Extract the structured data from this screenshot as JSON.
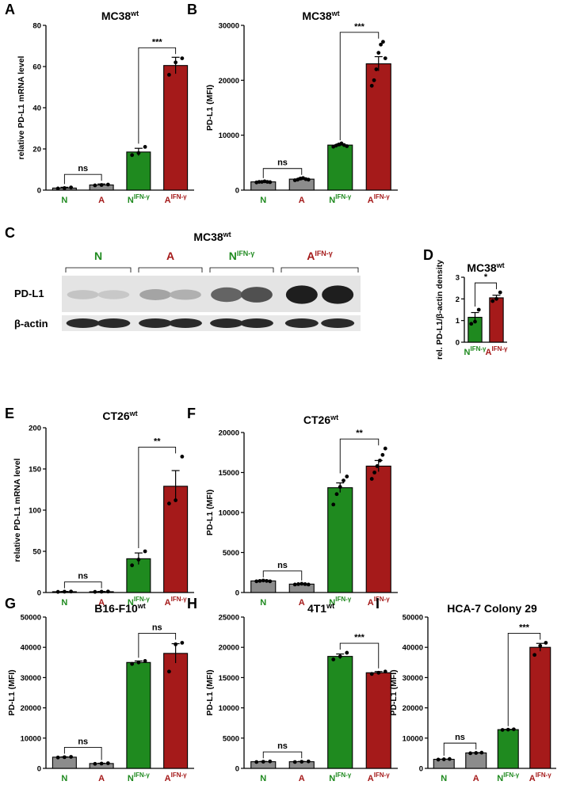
{
  "colors": {
    "N": "#8c8c8c",
    "A": "#8c8c8c",
    "N_ifn": "#1f8a1f",
    "A_ifn": "#a51a1a",
    "green_text": "#1f8a1f",
    "red_text": "#a51a1a"
  },
  "chart_data": [
    {
      "panel": "A",
      "type": "bar",
      "title": "MC38",
      "title_sup": "wt",
      "ylabel": "relative PD-L1 mRNA level",
      "ylim": [
        0,
        80
      ],
      "yticks": [
        0,
        20,
        40,
        60,
        80
      ],
      "categories": [
        "N",
        "A",
        "N",
        "A"
      ],
      "category_sup": [
        "",
        "",
        "IFN-γ",
        "IFN-γ"
      ],
      "values": [
        1,
        2.5,
        18.5,
        60.5
      ],
      "errors": [
        0.4,
        0.5,
        1.8,
        4
      ],
      "points": [
        [
          0.8,
          1.0,
          1.3
        ],
        [
          2.3,
          2.5,
          2.7
        ],
        [
          17,
          18,
          21
        ],
        [
          56,
          62,
          64
        ]
      ],
      "comparisons": [
        {
          "from": 0,
          "to": 1,
          "label": "ns"
        },
        {
          "from": 2,
          "to": 3,
          "label": "***"
        }
      ]
    },
    {
      "panel": "B",
      "type": "bar",
      "title": "MC38",
      "title_sup": "wt",
      "ylabel": "PD-L1 (MFI)",
      "ylim": [
        0,
        30000
      ],
      "yticks": [
        0,
        10000,
        20000,
        30000
      ],
      "categories": [
        "N",
        "A",
        "N",
        "A"
      ],
      "category_sup": [
        "",
        "",
        "IFN-γ",
        "IFN-γ"
      ],
      "values": [
        1500,
        2000,
        8200,
        23000
      ],
      "errors": [
        100,
        200,
        200,
        1300
      ],
      "points": [
        [
          1400,
          1500,
          1500,
          1600,
          1500,
          1450
        ],
        [
          1800,
          1900,
          2100,
          2200,
          2000,
          1900
        ],
        [
          7900,
          8100,
          8300,
          8500,
          8200,
          8000
        ],
        [
          19000,
          20000,
          22000,
          25000,
          26500,
          27000,
          24000
        ]
      ],
      "comparisons": [
        {
          "from": 0,
          "to": 1,
          "label": "ns"
        },
        {
          "from": 2,
          "to": 3,
          "label": "***"
        }
      ]
    },
    {
      "panel": "D",
      "type": "bar",
      "title": "MC38",
      "title_sup": "wt",
      "ylabel": "rel. PD-L1/β-actin density",
      "ylim": [
        0,
        3
      ],
      "yticks": [
        0,
        1,
        2,
        3
      ],
      "categories": [
        "N",
        "A"
      ],
      "category_sup": [
        "IFN-γ",
        "IFN-γ"
      ],
      "values": [
        1.15,
        2.05
      ],
      "errors": [
        0.22,
        0.12
      ],
      "points": [
        [
          0.85,
          0.95,
          1.5
        ],
        [
          1.9,
          2.0,
          2.3
        ]
      ],
      "comparisons": [
        {
          "from": 0,
          "to": 1,
          "label": "*"
        }
      ]
    },
    {
      "panel": "E",
      "type": "bar",
      "title": "CT26",
      "title_sup": "wt",
      "ylabel": "relative PD-L1 mRNA level",
      "ylim": [
        0,
        200
      ],
      "yticks": [
        0,
        50,
        100,
        150,
        200
      ],
      "categories": [
        "N",
        "A",
        "N",
        "A"
      ],
      "category_sup": [
        "",
        "",
        "IFN-γ",
        "IFN-γ"
      ],
      "values": [
        1,
        1,
        41,
        129
      ],
      "errors": [
        0.3,
        0.3,
        7,
        19
      ],
      "points": [
        [
          0.8,
          1.0,
          1.2
        ],
        [
          0.8,
          1.0,
          1.2
        ],
        [
          33,
          40,
          50
        ],
        [
          108,
          112,
          165
        ]
      ],
      "comparisons": [
        {
          "from": 0,
          "to": 1,
          "label": "ns"
        },
        {
          "from": 2,
          "to": 3,
          "label": "**"
        }
      ]
    },
    {
      "panel": "F",
      "type": "bar",
      "title": "CT26",
      "title_sup": "wt",
      "ylabel": "PD-L1 (MFI)",
      "ylim": [
        0,
        20000
      ],
      "yticks": [
        0,
        5000,
        10000,
        15000,
        20000
      ],
      "categories": [
        "N",
        "A",
        "N",
        "A"
      ],
      "category_sup": [
        "",
        "",
        "IFN-γ",
        "IFN-γ"
      ],
      "values": [
        1450,
        1050,
        13100,
        15800
      ],
      "errors": [
        50,
        50,
        600,
        700
      ],
      "points": [
        [
          1400,
          1450,
          1500,
          1450,
          1400
        ],
        [
          1000,
          1050,
          1100,
          1050,
          1000
        ],
        [
          11000,
          12300,
          13200,
          14000,
          14500
        ],
        [
          14200,
          15000,
          15800,
          16500,
          17200,
          18000
        ]
      ],
      "comparisons": [
        {
          "from": 0,
          "to": 1,
          "label": "ns"
        },
        {
          "from": 2,
          "to": 3,
          "label": "**"
        }
      ]
    },
    {
      "panel": "G",
      "type": "bar",
      "title": "B16-F10",
      "title_sup": "wt",
      "ylabel": "PD-L1 (MFI)",
      "ylim": [
        0,
        50000
      ],
      "yticks": [
        0,
        10000,
        20000,
        30000,
        40000,
        50000
      ],
      "categories": [
        "N",
        "A",
        "N",
        "A"
      ],
      "category_sup": [
        "",
        "",
        "IFN-γ",
        "IFN-γ"
      ],
      "values": [
        3700,
        1600,
        35000,
        38000
      ],
      "errors": [
        100,
        100,
        500,
        3200
      ],
      "points": [
        [
          3600,
          3700,
          3800
        ],
        [
          1500,
          1600,
          1700
        ],
        [
          34500,
          35000,
          35500
        ],
        [
          32000,
          41000,
          41500
        ]
      ],
      "comparisons": [
        {
          "from": 0,
          "to": 1,
          "label": "ns"
        },
        {
          "from": 2,
          "to": 3,
          "label": "ns"
        }
      ]
    },
    {
      "panel": "H",
      "type": "bar",
      "title": "4T1",
      "title_sup": "wt",
      "ylabel": "PD-L1 (MFI)",
      "ylim": [
        0,
        25000
      ],
      "yticks": [
        0,
        5000,
        10000,
        15000,
        20000,
        25000
      ],
      "categories": [
        "N",
        "A",
        "N",
        "A"
      ],
      "category_sup": [
        "",
        "",
        "IFN-γ",
        "IFN-γ"
      ],
      "values": [
        1100,
        1100,
        18500,
        15800
      ],
      "errors": [
        50,
        50,
        400,
        200
      ],
      "points": [
        [
          1050,
          1100,
          1150
        ],
        [
          1050,
          1100,
          1150
        ],
        [
          18000,
          18500,
          19100
        ],
        [
          15600,
          15800,
          16000
        ]
      ],
      "comparisons": [
        {
          "from": 0,
          "to": 1,
          "label": "ns"
        },
        {
          "from": 2,
          "to": 3,
          "label": "***"
        }
      ]
    },
    {
      "panel": "I",
      "type": "bar",
      "title": "HCA-7 Colony 29",
      "title_sup": "",
      "ylabel": "PD-L1 (MFI)",
      "ylim": [
        0,
        50000
      ],
      "yticks": [
        0,
        10000,
        20000,
        30000,
        40000,
        50000
      ],
      "categories": [
        "N",
        "A",
        "N",
        "A"
      ],
      "category_sup": [
        "",
        "",
        "IFN-γ",
        "IFN-γ"
      ],
      "values": [
        3000,
        5100,
        12800,
        40000
      ],
      "errors": [
        50,
        100,
        100,
        1300
      ],
      "points": [
        [
          2900,
          3000,
          3100
        ],
        [
          5000,
          5100,
          5200
        ],
        [
          12700,
          12800,
          12900
        ],
        [
          37500,
          40500,
          41500
        ]
      ],
      "comparisons": [
        {
          "from": 0,
          "to": 1,
          "label": "ns"
        },
        {
          "from": 2,
          "to": 3,
          "label": "***"
        }
      ]
    }
  ],
  "western_blot": {
    "panel": "C",
    "title": "MC38",
    "title_sup": "wt",
    "conditions": [
      "N",
      "A",
      "N",
      "A"
    ],
    "condition_sup": [
      "",
      "",
      "IFN-γ",
      "IFN-γ"
    ],
    "rows": [
      "PD-L1",
      "β-actin"
    ],
    "pdl1_intensity": [
      0.12,
      0.1,
      0.28,
      0.22,
      0.6,
      0.7,
      0.95,
      0.95
    ]
  }
}
